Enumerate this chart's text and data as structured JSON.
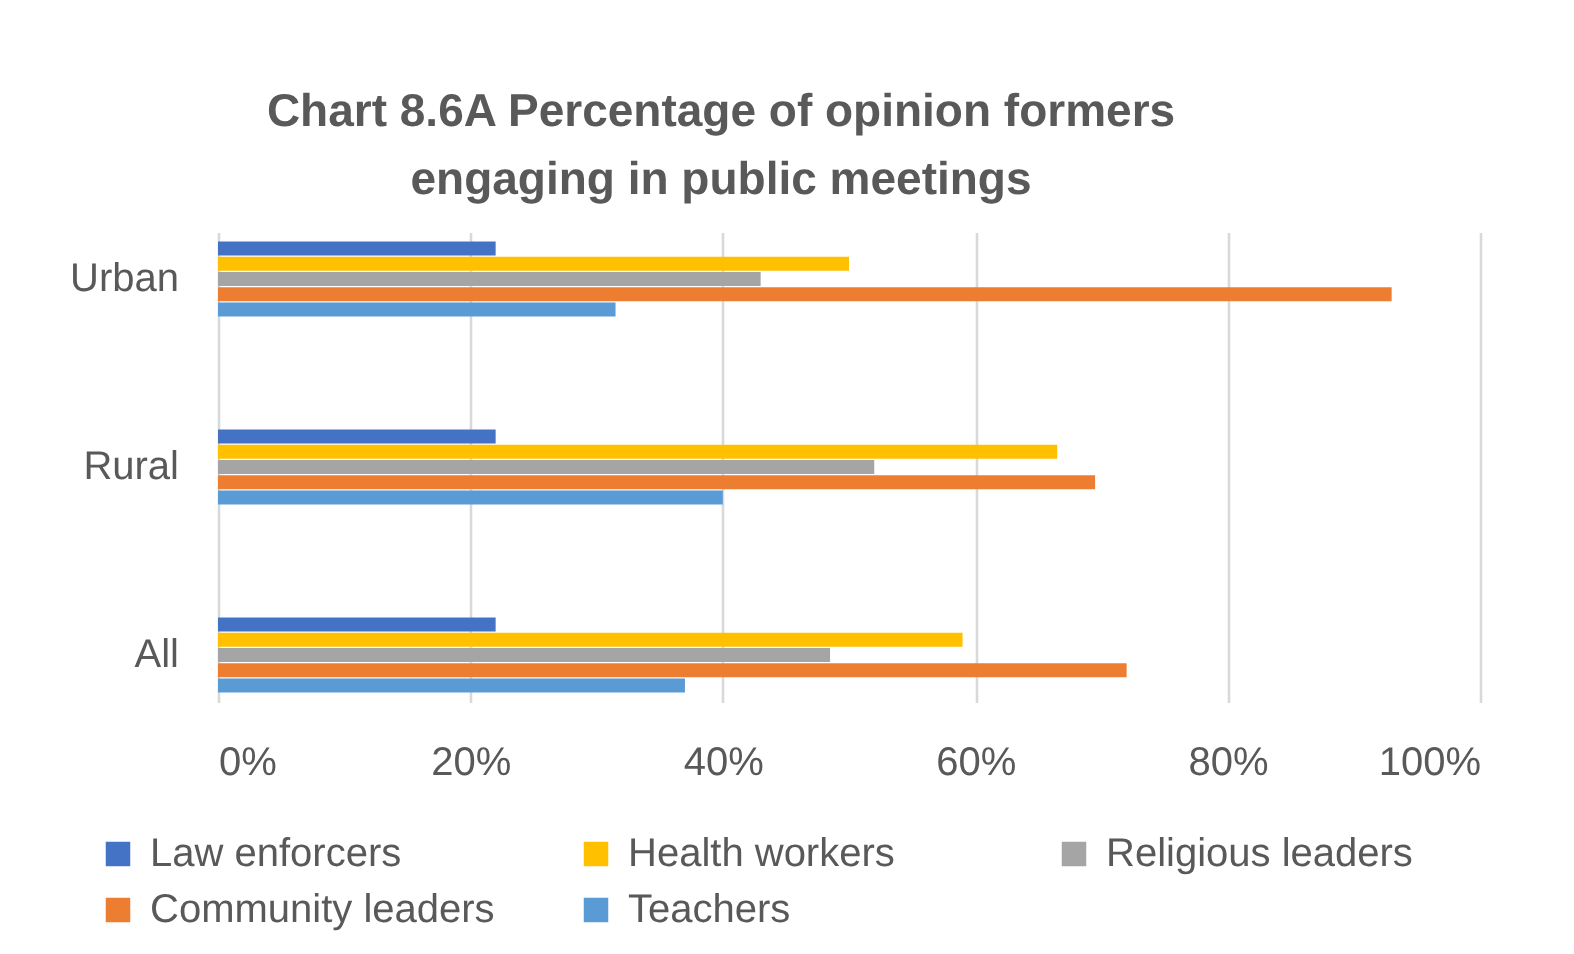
{
  "chart_data": {
    "type": "bar",
    "orientation": "horizontal",
    "title": "Chart 8.6A Percentage of opinion formers engaging in public meetings",
    "categories": [
      "Urban",
      "Rural",
      "All"
    ],
    "series": [
      {
        "name": "Law enforcers",
        "color": "#4472c4",
        "values": [
          22,
          22,
          22
        ]
      },
      {
        "name": "Health workers",
        "color": "#ffc000",
        "values": [
          50,
          66.5,
          59
        ]
      },
      {
        "name": "Religious leaders",
        "color": "#a5a5a5",
        "values": [
          43,
          52,
          48.5
        ]
      },
      {
        "name": "Community leaders",
        "color": "#ed7d31",
        "values": [
          93,
          69.5,
          72
        ]
      },
      {
        "name": "Teachers",
        "color": "#5b9bd5",
        "values": [
          31.5,
          40,
          37
        ]
      }
    ],
    "xlim": [
      0,
      100
    ],
    "xticks": [
      {
        "value": 0,
        "label": "0%"
      },
      {
        "value": 20,
        "label": "20%"
      },
      {
        "value": 40,
        "label": "40%"
      },
      {
        "value": 60,
        "label": "60%"
      },
      {
        "value": 80,
        "label": "80%"
      },
      {
        "value": 100,
        "label": "100%"
      }
    ],
    "grid": "x",
    "legend": "bottom"
  }
}
